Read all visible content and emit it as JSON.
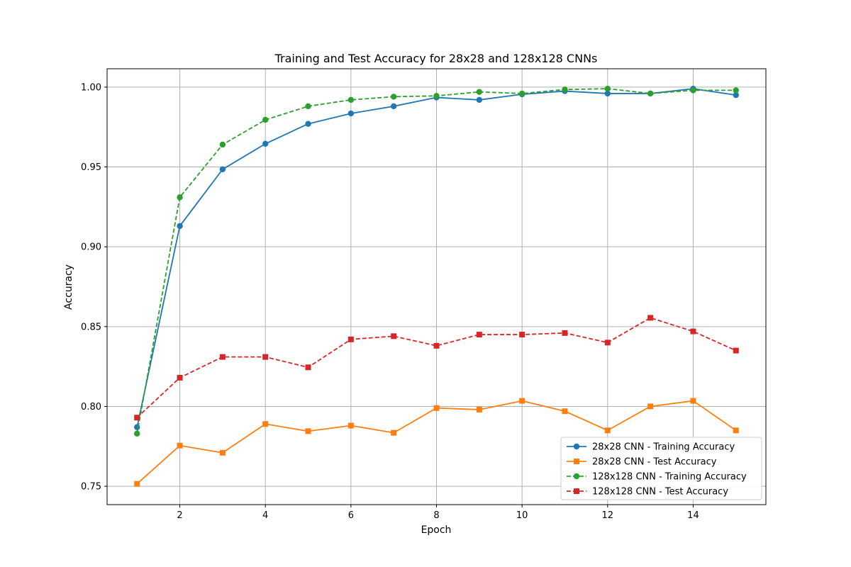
{
  "chart_data": {
    "type": "line",
    "title": "Training and Test Accuracy for 28x28 and 128x128 CNNs",
    "xlabel": "Epoch",
    "ylabel": "Accuracy",
    "xlim": [
      0.3,
      15.7
    ],
    "ylim": [
      0.7385,
      1.0115
    ],
    "xticks": [
      2,
      4,
      6,
      8,
      10,
      12,
      14
    ],
    "yticks": [
      0.75,
      0.8,
      0.85,
      0.9,
      0.95,
      1.0
    ],
    "grid": true,
    "legend_position": "lower-right",
    "x": [
      1,
      2,
      3,
      4,
      5,
      6,
      7,
      8,
      9,
      10,
      11,
      12,
      13,
      14,
      15
    ],
    "series": [
      {
        "name": "28x28 CNN - Training Accuracy",
        "color": "#1f77b4",
        "linestyle": "solid",
        "marker": "circle",
        "values": [
          0.787,
          0.913,
          0.9485,
          0.9645,
          0.977,
          0.9835,
          0.988,
          0.9935,
          0.992,
          0.9955,
          0.9975,
          0.996,
          0.996,
          0.999,
          0.995
        ]
      },
      {
        "name": "28x28 CNN - Test Accuracy",
        "color": "#ff7f0e",
        "linestyle": "solid",
        "marker": "square",
        "values": [
          0.7515,
          0.7755,
          0.771,
          0.789,
          0.7845,
          0.788,
          0.7835,
          0.799,
          0.798,
          0.8035,
          0.797,
          0.785,
          0.8,
          0.8035,
          0.785
        ]
      },
      {
        "name": "128x128 CNN - Training Accuracy",
        "color": "#2ca02c",
        "linestyle": "dashed",
        "marker": "circle",
        "values": [
          0.783,
          0.931,
          0.964,
          0.9795,
          0.988,
          0.992,
          0.994,
          0.9945,
          0.997,
          0.996,
          0.9985,
          0.999,
          0.996,
          0.998,
          0.998
        ]
      },
      {
        "name": "128x128 CNN - Test Accuracy",
        "color": "#d62728",
        "linestyle": "dashed",
        "marker": "square",
        "values": [
          0.793,
          0.818,
          0.831,
          0.831,
          0.8245,
          0.842,
          0.844,
          0.838,
          0.845,
          0.845,
          0.846,
          0.84,
          0.8555,
          0.847,
          0.835
        ]
      }
    ]
  }
}
